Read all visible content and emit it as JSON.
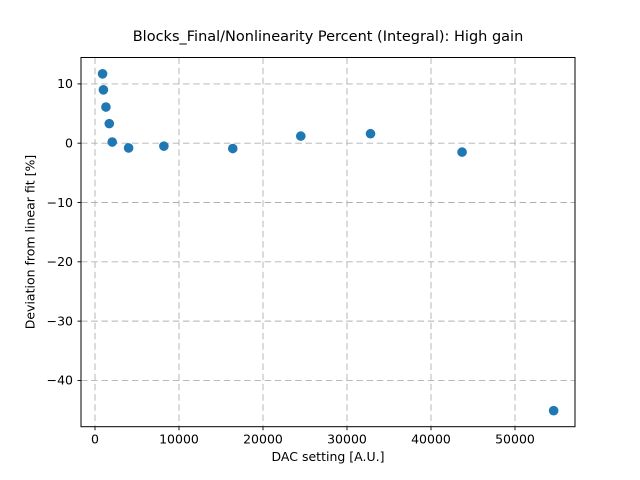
{
  "chart_data": {
    "type": "scatter",
    "title": "Blocks_Final/Nonlinearity Percent (Integral): High gain",
    "xlabel": "DAC setting [A.U.]",
    "ylabel": "Deviation from linear fit [%]",
    "xlim": [
      -1667,
      57143
    ],
    "ylim": [
      -47.8,
      14.45
    ],
    "x_ticks": {
      "values": [
        0,
        10000,
        20000,
        30000,
        40000,
        50000
      ],
      "labels": [
        "0",
        "10000",
        "20000",
        "30000",
        "40000",
        "50000"
      ]
    },
    "y_ticks": {
      "values": [
        10,
        0,
        -10,
        -20,
        -30,
        -40
      ],
      "labels": [
        "10",
        "0",
        "−10",
        "−20",
        "−30",
        "−40"
      ]
    },
    "grid": {
      "visible": true,
      "style": "dashed"
    },
    "legend_position": "none",
    "series": [
      {
        "name": "nonlinearity-points",
        "marker": "circle",
        "marker_radius_px": 4.8,
        "color": "#1f77b4",
        "points": [
          [
            900,
            11.7
          ],
          [
            1000,
            9.0
          ],
          [
            1300,
            6.1
          ],
          [
            1700,
            3.3
          ],
          [
            2050,
            0.2
          ],
          [
            4000,
            -0.8
          ],
          [
            8200,
            -0.5
          ],
          [
            16400,
            -0.9
          ],
          [
            24500,
            1.2
          ],
          [
            32800,
            1.6
          ],
          [
            43700,
            -1.5
          ],
          [
            54600,
            -45.1
          ]
        ]
      }
    ]
  },
  "colors": {
    "background": "#ffffff",
    "spine": "#000000",
    "tick": "#000000",
    "text": "#000000",
    "grid": "#b0b0b0",
    "marker": "#1f77b4"
  }
}
